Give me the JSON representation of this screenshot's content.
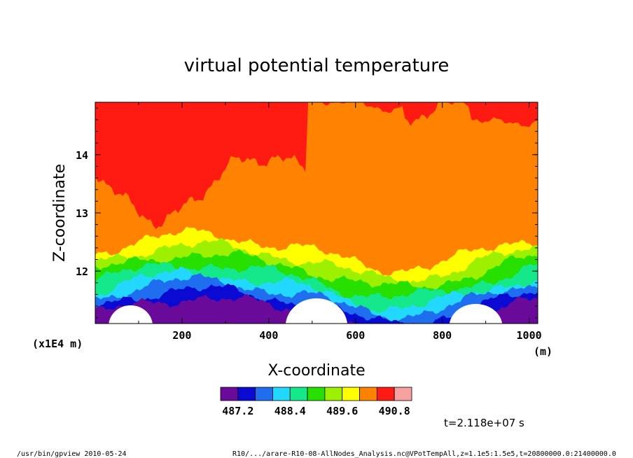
{
  "chart_data": {
    "type": "heatmap",
    "title": "virtual potential temperature",
    "xlabel": "X-coordinate",
    "ylabel": "Z-coordinate",
    "x_unit": "(m)",
    "y_scale_note": "(x1E4 m)",
    "xlim": [
      0,
      1020
    ],
    "ylim": [
      11.1,
      14.9
    ],
    "x_ticks": [
      "200",
      "400",
      "600",
      "800",
      "1000"
    ],
    "x_tick_values": [
      200,
      400,
      600,
      800,
      1000
    ],
    "y_ticks": [
      "12",
      "13",
      "14"
    ],
    "y_tick_values": [
      12,
      13,
      14
    ],
    "colorbar": {
      "colors": [
        "#6a0a9a",
        "#0a0ad2",
        "#1f6ef0",
        "#22d8ff",
        "#14e88a",
        "#28e000",
        "#9cf000",
        "#ffff00",
        "#ff8200",
        "#ff1a12",
        "#f7a0a0"
      ],
      "labels": [
        "487.2",
        "488.4",
        "489.6",
        "490.8"
      ],
      "label_values": [
        487.2,
        488.4,
        489.6,
        490.8
      ]
    },
    "time_label": "t=2.118e+07 s"
  },
  "footer": {
    "left": "/usr/bin/gpview  2010-05-24",
    "right": "R10/.../arare-R10-08-AllNodes_Analysis.nc@VPotTempAll,z=1.1e5:1.5e5,t=20800000.0:21400000.0"
  }
}
